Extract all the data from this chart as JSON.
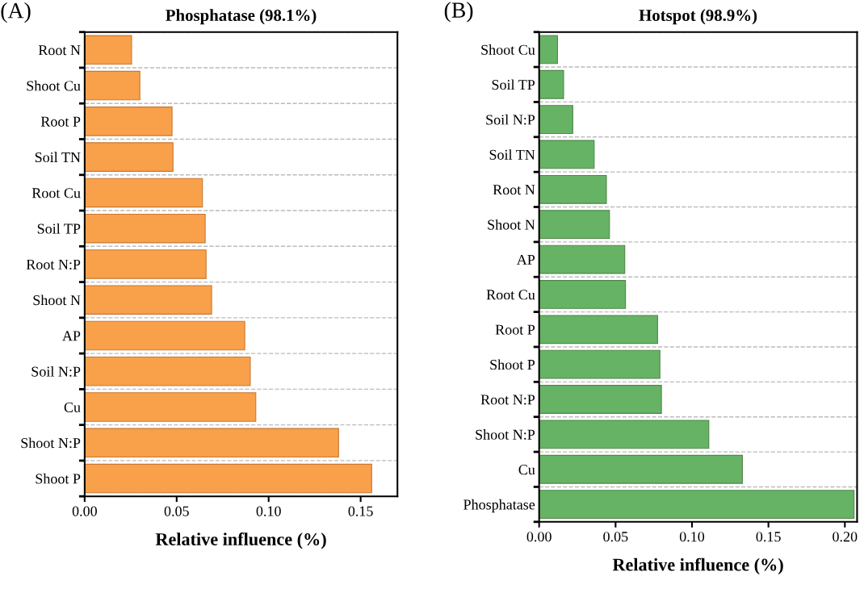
{
  "chart_data": [
    {
      "type": "bar",
      "orientation": "horizontal",
      "title": "Phosphatase (98.1%)",
      "xlabel": "Relative influence (%)",
      "annotations": [
        "(A)"
      ],
      "categories": [
        "Root N",
        "Shoot Cu",
        "Root P",
        "Soil TN",
        "Root Cu",
        "Soil TP",
        "Root N:P",
        "Shoot N",
        "AP",
        "Soil N:P",
        "Cu",
        "Shoot N:P",
        "Shoot P"
      ],
      "series": [
        {
          "color": "#f9a04b",
          "values": [
            0.0255,
            0.03,
            0.0475,
            0.048,
            0.064,
            0.0655,
            0.066,
            0.069,
            0.087,
            0.09,
            0.093,
            0.138,
            0.156
          ]
        }
      ],
      "xlim": [
        0,
        0.17
      ],
      "xticks": [
        {
          "value": 0,
          "label": "0.00"
        },
        {
          "value": 0.05,
          "label": "0.05"
        },
        {
          "value": 0.1,
          "label": "0.10"
        },
        {
          "value": 0.15,
          "label": "0.15"
        }
      ],
      "grid": "y"
    },
    {
      "type": "bar",
      "orientation": "horizontal",
      "title": "Hotspot (98.9%)",
      "xlabel": "Relative influence (%)",
      "annotations": [
        "(B)"
      ],
      "categories": [
        "Shoot Cu",
        "Soil TP",
        "Soil N:P",
        "Soil TN",
        "Root N",
        "Shoot N",
        "AP",
        "Root Cu",
        "Root P",
        "Shoot P",
        "Root N:P",
        "Shoot N:P",
        "Cu",
        "Phosphatase"
      ],
      "series": [
        {
          "color": "#66b366",
          "values": [
            0.012,
            0.016,
            0.022,
            0.036,
            0.044,
            0.046,
            0.056,
            0.0565,
            0.0775,
            0.079,
            0.08,
            0.111,
            0.133,
            0.206
          ]
        }
      ],
      "xlim": [
        0,
        0.208
      ],
      "xticks": [
        {
          "value": 0,
          "label": "0.00"
        },
        {
          "value": 0.05,
          "label": "0.05"
        },
        {
          "value": 0.1,
          "label": "0.10"
        },
        {
          "value": 0.15,
          "label": "0.15"
        },
        {
          "value": 0.2,
          "label": "0.20"
        }
      ],
      "grid": "y"
    }
  ]
}
